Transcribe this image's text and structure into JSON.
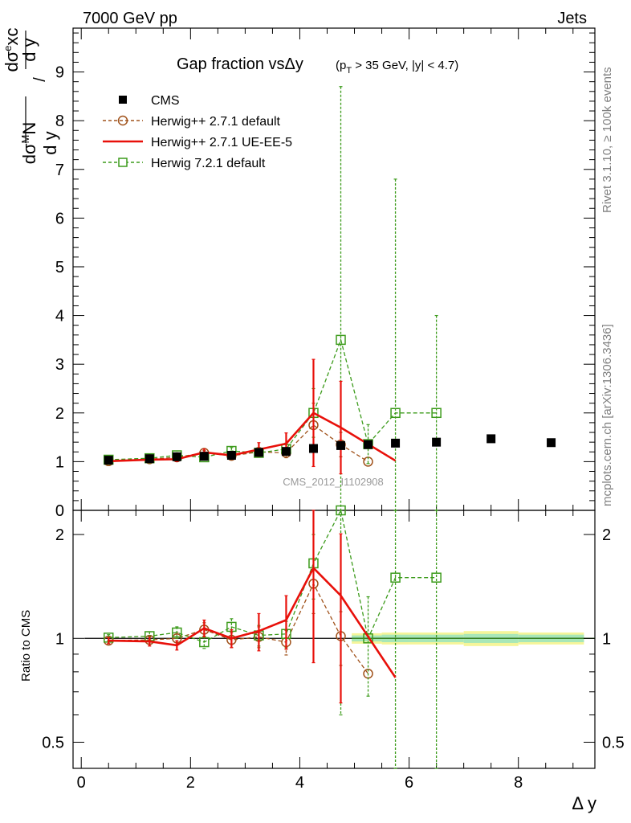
{
  "header": {
    "left": "7000 GeV pp",
    "right": "Jets"
  },
  "side_labels": {
    "rivet": "Rivet 3.1.10, ≥ 100k events",
    "mcplots": "mcplots.cern.ch [arXiv:1306.3436]"
  },
  "chart_data": {
    "type": "line",
    "title": "Gap fraction vsΔy",
    "subtitle": "(p_T > 35 GeV, |y| < 4.7)",
    "analysis_tag": "CMS_2012_I1102908",
    "xlabel": "Δ y",
    "ylabel": "dσ^M N / dσ^e xc  (d y / d y)",
    "ratio_ylabel": "Ratio to CMS",
    "xlim": [
      -0.15,
      9.4
    ],
    "ylim": [
      0,
      9.9
    ],
    "ratio_ylim": [
      0.42,
      2.35
    ],
    "ratio_scale": "log",
    "x_ticks": [
      0,
      2,
      4,
      6,
      8
    ],
    "y_ticks": [
      0,
      1,
      2,
      3,
      4,
      5,
      6,
      7,
      8,
      9
    ],
    "ratio_ticks": [
      0.5,
      1,
      2
    ],
    "legend_position": "top-left",
    "series": [
      {
        "name": "CMS",
        "color": "#000000",
        "marker": "filled-square",
        "x": [
          0.5,
          1.25,
          1.75,
          2.25,
          2.75,
          3.25,
          3.75,
          4.25,
          4.75,
          5.25,
          5.75,
          6.5,
          7.5,
          8.6
        ],
        "y": [
          1.03,
          1.06,
          1.1,
          1.11,
          1.13,
          1.19,
          1.21,
          1.27,
          1.33,
          1.35,
          1.38,
          1.4,
          1.47,
          1.39
        ]
      },
      {
        "name": "Herwig++ 2.7.1 default",
        "color": "#a0521b",
        "marker": "open-circle",
        "linestyle": "dashed",
        "x": [
          0.5,
          1.25,
          1.75,
          2.25,
          2.75,
          3.25,
          3.75,
          4.25,
          4.75,
          5.25
        ],
        "y": [
          1.01,
          1.05,
          1.09,
          1.18,
          1.12,
          1.2,
          1.18,
          1.75,
          1.35,
          1.0
        ],
        "err": [
          0.03,
          0.04,
          0.05,
          0.05,
          0.06,
          0.07,
          0.1,
          0.45,
          0.25,
          0.0
        ]
      },
      {
        "name": "Herwig++ 2.7.1 UE-EE-5",
        "color": "#e8100a",
        "marker": "none",
        "linestyle": "solid",
        "x": [
          0.5,
          1.25,
          1.75,
          2.25,
          2.75,
          3.25,
          3.75,
          4.25,
          4.75,
          5.75
        ],
        "y": [
          1.01,
          1.04,
          1.05,
          1.19,
          1.13,
          1.25,
          1.37,
          2.0,
          1.7,
          1.02
        ],
        "err": [
          0.03,
          0.04,
          0.05,
          0.07,
          0.07,
          0.14,
          0.22,
          1.1,
          0.95,
          0.0
        ]
      },
      {
        "name": "Herwig 7.2.1 default",
        "color": "#3c9b1b",
        "marker": "open-square",
        "linestyle": "dashed",
        "x": [
          0.5,
          1.25,
          1.75,
          2.25,
          2.75,
          3.25,
          3.75,
          4.25,
          4.75,
          5.25,
          5.75,
          6.5
        ],
        "y": [
          1.04,
          1.07,
          1.13,
          1.09,
          1.22,
          1.18,
          1.26,
          2.0,
          3.5,
          1.36,
          2.0,
          2.0
        ],
        "err": [
          0.03,
          0.04,
          0.05,
          0.05,
          0.07,
          0.08,
          0.12,
          0.5,
          5.2,
          0.4,
          4.8,
          2.0
        ]
      }
    ],
    "ratio_series": [
      {
        "name": "Herwig++ 2.7.1 default",
        "x": [
          0.5,
          1.25,
          1.75,
          2.25,
          2.75,
          3.25,
          3.75,
          4.25,
          4.75,
          5.25
        ],
        "y": [
          0.985,
          0.99,
          1.0,
          1.06,
          0.99,
          1.01,
          0.975,
          1.44,
          1.015,
          0.79
        ],
        "err": [
          0.02,
          0.03,
          0.04,
          0.05,
          0.05,
          0.07,
          0.08,
          0.26,
          0.18,
          0.0
        ]
      },
      {
        "name": "Herwig++ 2.7.1 UE-EE-5",
        "x": [
          0.5,
          1.25,
          1.75,
          2.25,
          2.75,
          3.25,
          3.75,
          4.25,
          4.75,
          5.75
        ],
        "y": [
          0.985,
          0.98,
          0.955,
          1.07,
          1.0,
          1.05,
          1.13,
          1.6,
          1.33,
          0.77
        ],
        "err": [
          0.02,
          0.03,
          0.03,
          0.06,
          0.06,
          0.13,
          0.2,
          0.75,
          0.68,
          0.0
        ]
      },
      {
        "name": "Herwig 7.2.1 default",
        "x": [
          0.5,
          1.25,
          1.75,
          2.25,
          2.75,
          3.25,
          3.75,
          4.25,
          4.75,
          5.25,
          5.75,
          6.5
        ],
        "y": [
          1.005,
          1.015,
          1.04,
          0.975,
          1.08,
          1.02,
          1.03,
          1.65,
          2.4,
          1.0,
          1.5,
          1.5
        ],
        "err": [
          0.02,
          0.03,
          0.04,
          0.04,
          0.06,
          0.07,
          0.09,
          0.35,
          1.8,
          0.32,
          2.0,
          1.5
        ]
      }
    ],
    "cms_uncertainty_band": {
      "x_edges": [
        4.95,
        5.5,
        6.0,
        7.0,
        8.0,
        9.2
      ],
      "inner": [
        0.02,
        0.025,
        0.025,
        0.03,
        0.025
      ],
      "outer": [
        0.035,
        0.04,
        0.04,
        0.05,
        0.04
      ]
    }
  }
}
